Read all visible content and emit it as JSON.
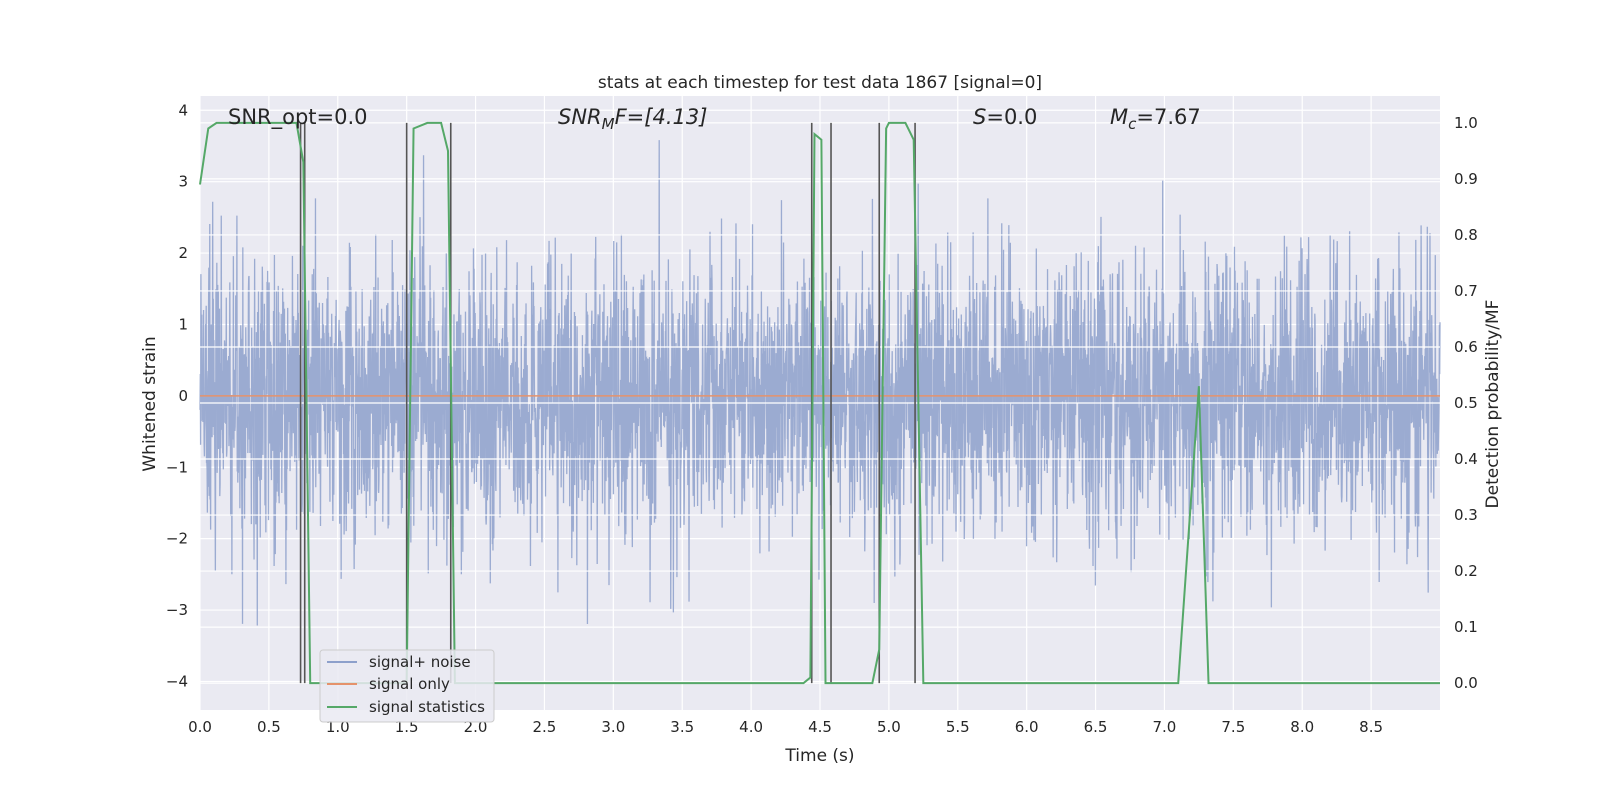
{
  "chart_data": {
    "type": "line",
    "title": "stats at each timestep for test data 1867 [signal=0]",
    "xlabel": "Time (s)",
    "ylabel_left": "Whitened strain",
    "ylabel_right": "Detection probability/MF",
    "xlim": [
      0.0,
      9.0
    ],
    "ylim_left": [
      -4.4,
      4.2
    ],
    "ylim_right": [
      -0.048,
      1.048
    ],
    "grid": true,
    "legend_placement": "lower-left",
    "x_ticks": [
      "0.0",
      "0.5",
      "1.0",
      "1.5",
      "2.0",
      "2.5",
      "3.0",
      "3.5",
      "4.0",
      "4.5",
      "5.0",
      "5.5",
      "6.0",
      "6.5",
      "7.0",
      "7.5",
      "8.0",
      "8.5"
    ],
    "y_ticks_left": [
      "−4",
      "−3",
      "−2",
      "−1",
      "0",
      "1",
      "2",
      "3",
      "4"
    ],
    "y_ticks_right": [
      "0.0",
      "0.1",
      "0.2",
      "0.3",
      "0.4",
      "0.5",
      "0.6",
      "0.7",
      "0.8",
      "0.9",
      "1.0"
    ],
    "annotations": {
      "snr_opt": "SNR_opt=0.0",
      "snr_mf_main": "SNR",
      "snr_mf_sub": "M",
      "snr_mf_rest": "F=[4.13]",
      "s_main": "S",
      "s_rest": "=0.0",
      "mc_main": "M",
      "mc_sub": "c",
      "mc_rest": "=7.67"
    },
    "series": [
      {
        "name": "signal+ noise",
        "color": "#8da0cb",
        "axis": "left",
        "description_values": {
          "typical_range": [
            -2.5,
            2.5
          ],
          "max_peak": 3.7,
          "min_peak": -3.6
        }
      },
      {
        "name": "signal only",
        "color": "#e5926b",
        "axis": "left",
        "x": [
          0.0,
          9.0
        ],
        "y": [
          0.0,
          0.0
        ]
      },
      {
        "name": "signal statistics",
        "color": "#55a868",
        "axis": "right",
        "x": [
          0.0,
          0.06,
          0.12,
          0.2,
          0.6,
          0.7,
          0.75,
          0.8,
          1.0,
          1.3,
          1.5,
          1.55,
          1.65,
          1.75,
          1.8,
          1.85,
          1.9,
          2.0,
          3.0,
          4.0,
          4.38,
          4.43,
          4.46,
          4.51,
          4.54,
          4.58,
          4.62,
          4.75,
          4.88,
          4.93,
          4.98,
          5.0,
          5.05,
          5.12,
          5.18,
          5.25,
          5.32,
          5.5,
          6.0,
          7.1,
          7.25,
          7.32,
          7.4,
          8.0,
          9.0
        ],
        "y": [
          0.89,
          0.99,
          1.0,
          1.0,
          1.0,
          1.0,
          0.93,
          0.0,
          0.0,
          0.0,
          0.0,
          0.99,
          1.0,
          1.0,
          0.95,
          0.0,
          0.0,
          0.0,
          0.0,
          0.0,
          0.0,
          0.01,
          0.98,
          0.97,
          0.0,
          0.0,
          0.0,
          0.0,
          0.0,
          0.06,
          0.99,
          1.0,
          1.0,
          1.0,
          0.97,
          0.0,
          0.0,
          0.0,
          0.0,
          0.0,
          0.53,
          0.0,
          0.0,
          0.0,
          0.0
        ]
      }
    ],
    "vertical_markers": {
      "color": "#555555",
      "x": [
        0.73,
        0.76,
        1.5,
        1.82,
        4.44,
        4.58,
        4.93,
        5.19
      ],
      "y_range_right": [
        0.0,
        1.0
      ]
    }
  },
  "legend": {
    "item_1": "signal+ noise",
    "item_2": "signal only",
    "item_3": "signal statistics"
  }
}
